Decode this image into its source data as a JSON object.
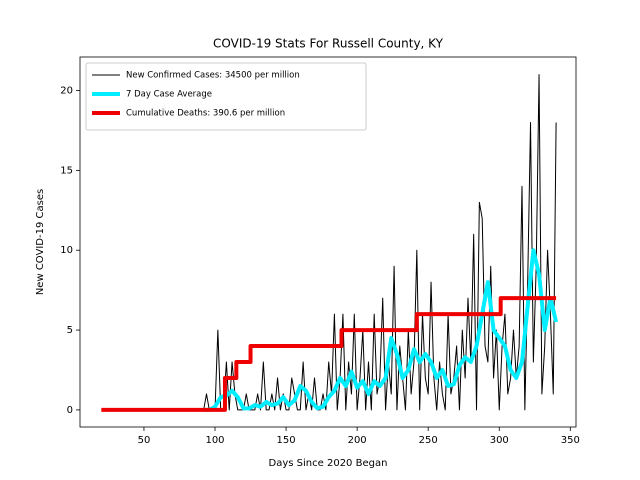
{
  "chart_data": {
    "type": "line",
    "title": "COVID-19 Stats For Russell County, KY",
    "x_label": "Days Since 2020 Began",
    "y_label": "New COVID-19 Cases",
    "xlim": [
      5,
      354
    ],
    "ylim": [
      -1.07,
      22.1
    ],
    "xticks": [
      50,
      100,
      150,
      200,
      250,
      300,
      350
    ],
    "yticks": [
      0,
      5,
      10,
      15,
      20
    ],
    "legend": "upper left",
    "series": [
      {
        "name": "New Confirmed Cases: 34500 per million",
        "color": "#000000",
        "width": 1,
        "x": [
          92,
          94,
          96,
          98,
          100,
          102,
          104,
          106,
          108,
          110,
          112,
          114,
          116,
          118,
          120,
          122,
          124,
          126,
          128,
          130,
          132,
          134,
          136,
          138,
          140,
          142,
          144,
          146,
          148,
          150,
          152,
          154,
          156,
          158,
          160,
          162,
          164,
          166,
          168,
          170,
          172,
          174,
          176,
          178,
          180,
          182,
          184,
          186,
          188,
          190,
          192,
          194,
          196,
          198,
          200,
          202,
          204,
          206,
          208,
          210,
          212,
          214,
          216,
          218,
          220,
          222,
          224,
          226,
          228,
          230,
          232,
          234,
          236,
          238,
          240,
          242,
          244,
          246,
          248,
          250,
          252,
          254,
          256,
          258,
          260,
          262,
          264,
          266,
          268,
          270,
          272,
          274,
          276,
          278,
          280,
          282,
          284,
          286,
          288,
          290,
          292,
          294,
          296,
          298,
          300,
          302,
          304,
          306,
          308,
          310,
          312,
          314,
          316,
          318,
          320,
          322,
          324,
          326,
          328,
          330,
          332,
          334,
          336,
          338,
          340
        ],
        "values": [
          0,
          1,
          0,
          0,
          0,
          5,
          0,
          0,
          3,
          0,
          3,
          1,
          0,
          0,
          0,
          1,
          0,
          0,
          0,
          1,
          0,
          3,
          0,
          0,
          1,
          0,
          2,
          0,
          1,
          0,
          0,
          2,
          1,
          0,
          0,
          3,
          0,
          1,
          0,
          2,
          0,
          0,
          1,
          0,
          3,
          1,
          6,
          0,
          2,
          6,
          0,
          3,
          1,
          6,
          0,
          2,
          5,
          0,
          3,
          0,
          6,
          1,
          2,
          7,
          0,
          3,
          1,
          9,
          0,
          4,
          2,
          0,
          5,
          1,
          3,
          10,
          0,
          6,
          2,
          1,
          8,
          2,
          0,
          3,
          1,
          0,
          6,
          1,
          2,
          4,
          0,
          5,
          2,
          7,
          3,
          11,
          0,
          13,
          12,
          4,
          3,
          9,
          2,
          5,
          0,
          4,
          6,
          1,
          2,
          5,
          2,
          4,
          14,
          0,
          8,
          18,
          3,
          9,
          21,
          1,
          4,
          10,
          6,
          1,
          18
        ]
      },
      {
        "name": "7 Day Case Average",
        "color": "#00eeff",
        "width": 4,
        "x": [
          92,
          96,
          100,
          104,
          108,
          112,
          116,
          120,
          124,
          128,
          132,
          136,
          140,
          144,
          148,
          152,
          156,
          160,
          164,
          168,
          172,
          176,
          180,
          184,
          188,
          192,
          196,
          200,
          204,
          208,
          212,
          216,
          220,
          224,
          228,
          232,
          236,
          240,
          244,
          248,
          252,
          256,
          260,
          264,
          268,
          272,
          276,
          280,
          284,
          288,
          292,
          296,
          300,
          304,
          308,
          312,
          316,
          320,
          324,
          328,
          332,
          336,
          340
        ],
        "values": [
          0,
          0,
          0.2,
          0.8,
          0.9,
          1.2,
          0.8,
          0.1,
          0.1,
          0.3,
          0.2,
          0.5,
          0.3,
          0.4,
          0.8,
          0.3,
          0.6,
          1.5,
          1.2,
          0.5,
          0.1,
          0.2,
          0.8,
          1.2,
          2.0,
          1.5,
          2.4,
          1.4,
          1.8,
          1.0,
          1.8,
          1.5,
          2.0,
          4.5,
          3.5,
          2.0,
          2.5,
          3.8,
          3.0,
          3.5,
          3.0,
          2.0,
          2.5,
          1.5,
          1.6,
          2.8,
          3.3,
          3.0,
          4.0,
          6.0,
          8.0,
          5.0,
          4.5,
          4.0,
          2.5,
          2.0,
          3.0,
          6.5,
          10.0,
          8.5,
          5.0,
          7.0,
          5.5
        ]
      },
      {
        "name": "Cumulative Deaths: 390.6 per million",
        "color": "#ee0000",
        "width": 4,
        "x": [
          20,
          107,
          107,
          115,
          115,
          125,
          125,
          189,
          189,
          242,
          242,
          301,
          301,
          340
        ],
        "values": [
          0,
          0,
          2,
          2,
          3,
          3,
          4,
          4,
          5,
          5,
          6,
          6,
          7,
          7
        ]
      }
    ]
  }
}
